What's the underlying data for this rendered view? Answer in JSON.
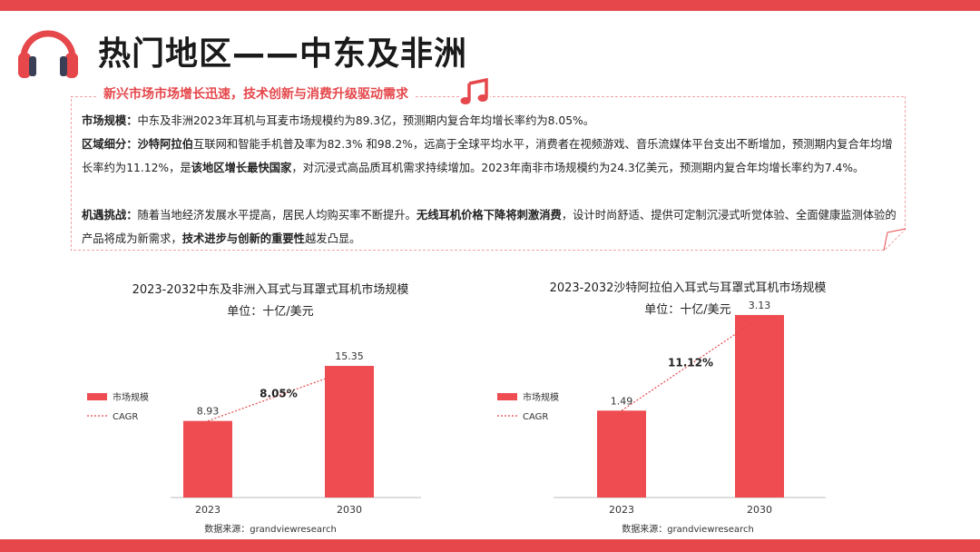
{
  "page": {
    "title": "热门地区——中东及非洲",
    "subtitle": "新兴市场市场增长迅速，技术创新与消费升级驱动需求"
  },
  "paragraphs": {
    "p1": {
      "label": "市场规模：",
      "text": "中东及非洲2023年耳机与耳麦市场规模约为89.3亿，预测期内复合年均增长率约为8.05%。"
    },
    "p2": {
      "label": "区域细分：",
      "bold1": "沙特阿拉伯",
      "text1": "互联网和智能手机普及率为82.3% 和98.2%，远高于全球平均水平，消费者在视频游戏、音乐流媒体平台支出不断增加，预测期内复合年均增长率约为11.12%，是",
      "bold2": "该地区增长最快国家",
      "text2": "，对沉浸式高品质耳机需求持续增加。2023年南非市场规模约为24.3亿美元，预测期内复合年均增长率约为7.4%。"
    },
    "p3": {
      "label": "机遇挑战：",
      "text1": "随着当地经济发展水平提高，居民人均购买率不断提升。",
      "bold1": "无线耳机价格下降将刺激消费",
      "text2": "，设计时尚舒适、提供可定制沉浸式听觉体验、全面健康监测体验的产品将成为新需求，",
      "bold2": "技术进步与创新的重要性",
      "text3": "越发凸显。"
    }
  },
  "colors": {
    "accent": "#e5474b",
    "bar": "#ee4c50",
    "text": "#222222"
  },
  "chart_data": [
    {
      "type": "bar",
      "title": "2023-2032中东及非洲入耳式与耳罩式耳机市场规模",
      "unit": "单位：十亿/美元",
      "categories": [
        "2023",
        "2030"
      ],
      "series": [
        {
          "name": "市场规模",
          "values": [
            8.93,
            15.35
          ]
        }
      ],
      "cagr_label": "CAGR",
      "cagr_value": "8.05%",
      "ylim": [
        0,
        18
      ],
      "value_labels": [
        "8.93",
        "15.35"
      ],
      "legend_position": "left",
      "source": "数据来源：grandviewresearch"
    },
    {
      "type": "bar",
      "title": "2023-2032沙特阿拉伯入耳式与耳罩式耳机市场规模",
      "unit": "单位：十亿/美元",
      "categories": [
        "2023",
        "2030"
      ],
      "series": [
        {
          "name": "市场规模",
          "values": [
            1.49,
            3.13
          ]
        }
      ],
      "cagr_label": "CAGR",
      "cagr_value": "11.12%",
      "ylim": [
        0,
        3.3
      ],
      "value_labels": [
        "1.49",
        "3.13"
      ],
      "legend_position": "left",
      "source": "数据来源：grandviewresearch"
    }
  ]
}
